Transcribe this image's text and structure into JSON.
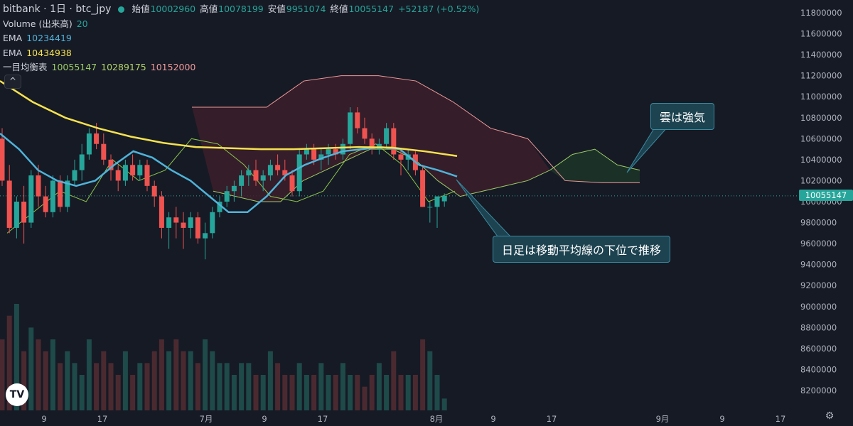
{
  "header": {
    "symbol": "bitbank · 1日 · btc_jpy",
    "open_label": "始値",
    "open": "10002960",
    "high_label": "高値",
    "high": "10078199",
    "low_label": "安値",
    "low": "9951074",
    "close_label": "終値",
    "close": "10055147",
    "change": "+52187 (+0.52%)",
    "volume_label": "Volume (出来高)",
    "volume_value": "20",
    "ema1_label": "EMA",
    "ema1_value": "10234419",
    "ema2_label": "EMA",
    "ema2_value": "10434938",
    "ichimoku_label": "一目均衡表",
    "ichimoku_v1": "10055147",
    "ichimoku_v2": "10289175",
    "ichimoku_v3": "10152000",
    "toggle_glyph": "^",
    "logo_text": "TV",
    "gear_glyph": "⚙"
  },
  "colors": {
    "up": "#26a69a",
    "down": "#ef5350",
    "ema_fast": "#4fb3d9",
    "ema_slow": "#f5e24f",
    "tenkan": "#8bc34a",
    "kijun": "#b5d66a",
    "span_a": "#9ccc65",
    "span_b": "#ef9a9a",
    "cloud_bear": "#3b1f2b",
    "cloud_bull": "#1c3328"
  },
  "annotations": [
    {
      "text": "雲は強気"
    },
    {
      "text": "日足は移動平均線の下位で推移"
    }
  ],
  "chart_data": {
    "type": "candlestick",
    "current_price": "10055147",
    "y_ticks": [
      11800000,
      11600000,
      11400000,
      11200000,
      11000000,
      10800000,
      10600000,
      10400000,
      10200000,
      10000000,
      9800000,
      9600000,
      9400000,
      9200000,
      9000000,
      8800000,
      8600000,
      8400000,
      8200000
    ],
    "x_ticks": [
      "9",
      "17",
      "7月",
      "9",
      "17",
      "8月",
      "9",
      "17",
      "9月",
      "9",
      "17"
    ],
    "candles": [
      [
        10600000,
        10700000,
        10150000,
        10200000
      ],
      [
        10200000,
        10350000,
        9700000,
        9750000
      ],
      [
        9750000,
        10050000,
        9650000,
        10000000
      ],
      [
        10000000,
        10150000,
        9600000,
        9800000
      ],
      [
        9800000,
        10300000,
        9750000,
        10250000
      ],
      [
        10250000,
        10350000,
        9950000,
        10050000
      ],
      [
        10050000,
        10150000,
        9850000,
        9900000
      ],
      [
        9900000,
        10250000,
        9850000,
        10200000
      ],
      [
        10200000,
        10250000,
        9900000,
        9950000
      ],
      [
        9950000,
        10250000,
        9900000,
        10200000
      ],
      [
        10200000,
        10400000,
        10150000,
        10300000
      ],
      [
        10300000,
        10550000,
        10200000,
        10450000
      ],
      [
        10450000,
        10700000,
        10400000,
        10650000
      ],
      [
        10650000,
        10750000,
        10500000,
        10550000
      ],
      [
        10550000,
        10650000,
        10350000,
        10400000
      ],
      [
        10400000,
        10450000,
        10200000,
        10300000
      ],
      [
        10300000,
        10350000,
        10100000,
        10200000
      ],
      [
        10200000,
        10400000,
        10150000,
        10350000
      ],
      [
        10350000,
        10450000,
        10200000,
        10250000
      ],
      [
        10250000,
        10400000,
        10200000,
        10350000
      ],
      [
        10350000,
        10400000,
        10100000,
        10150000
      ],
      [
        10150000,
        10200000,
        9950000,
        10050000
      ],
      [
        10050000,
        10100000,
        9650000,
        9750000
      ],
      [
        9750000,
        9900000,
        9550000,
        9850000
      ],
      [
        9850000,
        9950000,
        9650000,
        9800000
      ],
      [
        9800000,
        9900000,
        9550000,
        9750000
      ],
      [
        9750000,
        9900000,
        9650000,
        9850000
      ],
      [
        9850000,
        9900000,
        9600000,
        9650000
      ],
      [
        9650000,
        9800000,
        9450000,
        9700000
      ],
      [
        9700000,
        9950000,
        9650000,
        9900000
      ],
      [
        9900000,
        10050000,
        9850000,
        10000000
      ],
      [
        10000000,
        10150000,
        9950000,
        10100000
      ],
      [
        10100000,
        10200000,
        10000000,
        10150000
      ],
      [
        10150000,
        10300000,
        10050000,
        10250000
      ],
      [
        10250000,
        10350000,
        10150000,
        10300000
      ],
      [
        10300000,
        10400000,
        10150000,
        10200000
      ],
      [
        10200000,
        10300000,
        10100000,
        10250000
      ],
      [
        10250000,
        10400000,
        10200000,
        10350000
      ],
      [
        10350000,
        10450000,
        10250000,
        10300000
      ],
      [
        10300000,
        10400000,
        10200000,
        10250000
      ],
      [
        10250000,
        10300000,
        10050000,
        10100000
      ],
      [
        10100000,
        10500000,
        10050000,
        10450000
      ],
      [
        10450000,
        10550000,
        10400000,
        10500000
      ],
      [
        10500000,
        10550000,
        10350000,
        10400000
      ],
      [
        10400000,
        10500000,
        10300000,
        10450000
      ],
      [
        10450000,
        10550000,
        10350000,
        10500000
      ],
      [
        10500000,
        10550000,
        10400000,
        10450000
      ],
      [
        10450000,
        10600000,
        10400000,
        10550000
      ],
      [
        10550000,
        10900000,
        10500000,
        10850000
      ],
      [
        10850000,
        10900000,
        10650000,
        10700000
      ],
      [
        10700000,
        10800000,
        10550000,
        10600000
      ],
      [
        10600000,
        10650000,
        10450000,
        10500000
      ],
      [
        10500000,
        10600000,
        10450000,
        10550000
      ],
      [
        10550000,
        10750000,
        10500000,
        10700000
      ],
      [
        10700000,
        10750000,
        10400000,
        10450000
      ],
      [
        10450000,
        10500000,
        10250000,
        10400000
      ],
      [
        10400000,
        10500000,
        10300000,
        10450000
      ],
      [
        10450000,
        10480000,
        10250000,
        10300000
      ],
      [
        10300000,
        10350000,
        9950000,
        9950000
      ],
      [
        9950000,
        10000000,
        9800000,
        9950000
      ],
      [
        9950000,
        10050000,
        9750000,
        10050000
      ],
      [
        10002960,
        10078199,
        9951074,
        10055147
      ]
    ],
    "volumes": [
      6,
      8,
      9,
      5,
      7,
      6,
      5,
      6,
      4,
      5,
      4,
      3,
      6,
      4,
      5,
      4,
      3,
      5,
      3,
      4,
      4,
      5,
      6,
      5,
      6,
      5,
      5,
      4,
      6,
      5,
      4,
      4,
      3,
      4,
      4,
      3,
      3,
      5,
      4,
      3,
      3,
      4,
      3,
      3,
      4,
      3,
      3,
      4,
      3,
      3,
      2,
      3,
      4,
      3,
      5,
      3,
      3,
      3,
      6,
      5,
      3,
      1
    ],
    "ema_fast": [
      10650000,
      10500000,
      10300000,
      10200000,
      10150000,
      10200000,
      10350000,
      10480000,
      10420000,
      10300000,
      10200000,
      10050000,
      9900000,
      9900000,
      10050000,
      10250000,
      10350000,
      10420000,
      10480000,
      10500000,
      10520000,
      10500000,
      10350000,
      10300000,
      10240000
    ],
    "ema_slow": [
      11150000,
      10950000,
      10800000,
      10700000,
      10620000,
      10560000,
      10520000,
      10510000,
      10500000,
      10500000,
      10510000,
      10520000,
      10515000,
      10480000,
      10435000
    ],
    "ichimoku": {
      "span_a": [
        10100000,
        10050000,
        10000000,
        10000000,
        10200000,
        10300000,
        10400000,
        10500000,
        10500000,
        10400000,
        10200000,
        10050000,
        10100000,
        10150000,
        10200000,
        10300000,
        10450000,
        10500000,
        10350000,
        10300000
      ],
      "span_b": [
        10900000,
        10900000,
        10900000,
        11150000,
        11200000,
        11200000,
        11150000,
        10950000,
        10700000,
        10600000,
        10200000,
        10180000,
        10180000
      ],
      "tenkan": [
        9700000,
        9900000,
        10100000,
        10000000,
        10400000,
        10200000,
        10300000,
        10600000,
        10550000,
        10350000,
        10050000,
        10000000,
        10100000,
        10450000,
        10550000,
        10350000,
        10000000,
        10100000
      ],
      "kijun": [
        10400000,
        10350000,
        10450000,
        10500000,
        10600000,
        10550000,
        10400000,
        10300000,
        10150000,
        10050000,
        10000000,
        10100000
      ]
    }
  }
}
